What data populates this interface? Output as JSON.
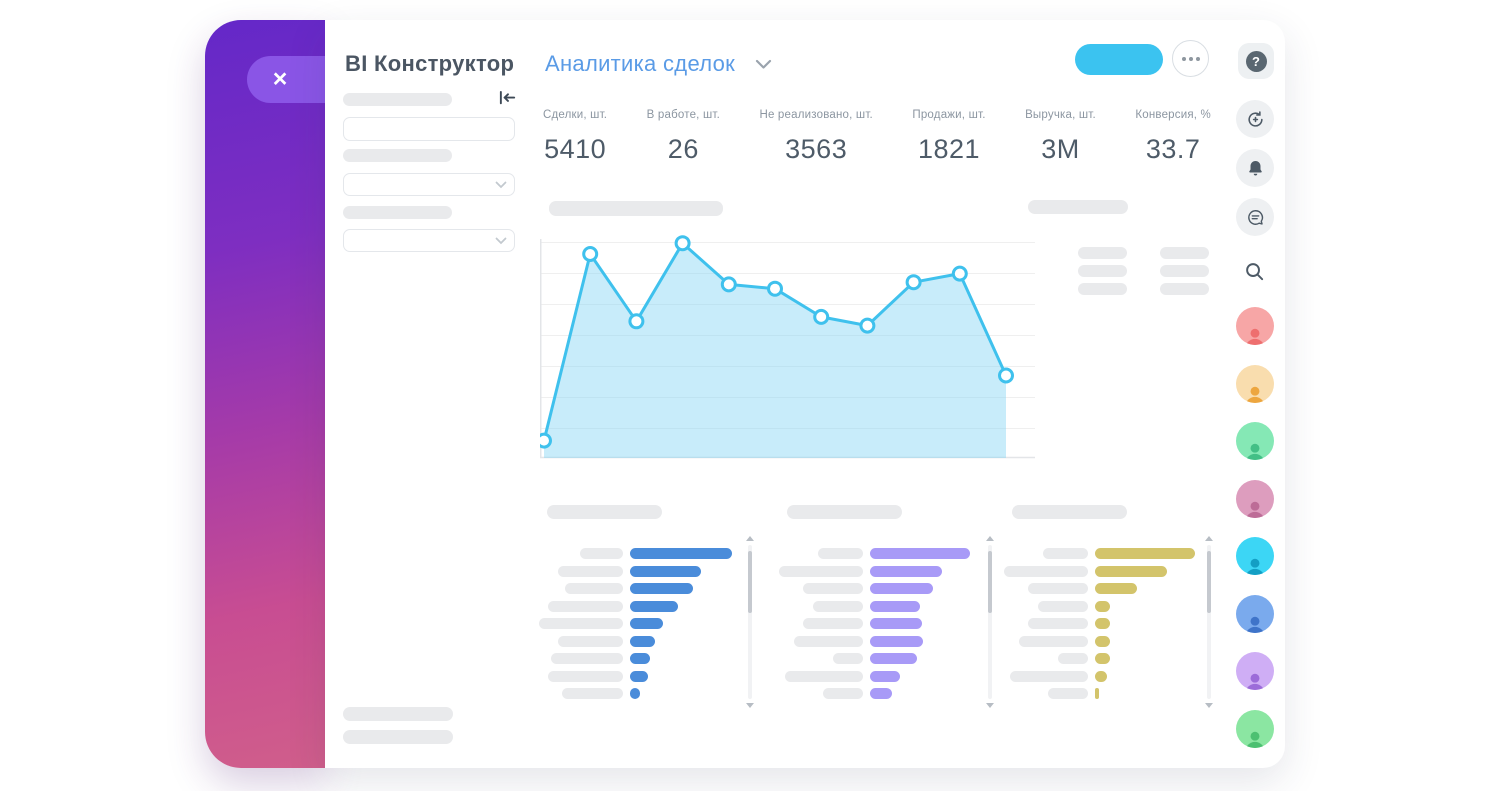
{
  "header": {
    "app_title": "BI Конструктор",
    "dashboard_title": "Аналитика сделок",
    "close_label": "×",
    "help_label": "?"
  },
  "kpis": [
    {
      "label": "Сделки, шт.",
      "value": "5410"
    },
    {
      "label": "В работе, шт.",
      "value": "26"
    },
    {
      "label": "Не реализовано, шт.",
      "value": "3563"
    },
    {
      "label": "Продажи, шт.",
      "value": "1821"
    },
    {
      "label": "Выручка, шт.",
      "value": "3M"
    },
    {
      "label": "Конверсия, %",
      "value": "33.7"
    }
  ],
  "chart_data": [
    {
      "type": "area",
      "title": "",
      "x": [
        1,
        2,
        3,
        4,
        5,
        6,
        7,
        8,
        9,
        10,
        11
      ],
      "values": [
        8,
        94,
        63,
        99,
        80,
        78,
        65,
        61,
        81,
        85,
        38
      ],
      "ylim": [
        0,
        100
      ],
      "grid": true,
      "legend_position": "right-skeleton",
      "line_color": "#3fc1ed",
      "fill_color": "rgba(134,212,245,0.45)",
      "marker": "white-circle"
    },
    {
      "type": "bar",
      "name": "funnel-blue",
      "orientation": "horizontal",
      "color": "#4a8cda",
      "values": [
        102,
        71,
        63,
        48,
        33,
        25,
        20,
        18,
        10
      ],
      "label_widths": [
        43,
        65,
        58,
        75,
        84,
        65,
        72,
        75,
        61
      ],
      "units": "relative-px"
    },
    {
      "type": "bar",
      "name": "funnel-purple",
      "orientation": "horizontal",
      "color": "#a89af7",
      "values": [
        100,
        72,
        63,
        50,
        52,
        53,
        47,
        30,
        22
      ],
      "label_widths": [
        45,
        84,
        60,
        50,
        60,
        69,
        30,
        78,
        40
      ],
      "units": "relative-px"
    },
    {
      "type": "bar",
      "name": "funnel-yellow",
      "orientation": "horizontal",
      "color": "#d3c46b",
      "values": [
        100,
        72,
        42,
        15,
        15,
        15,
        15,
        12,
        4
      ],
      "label_widths": [
        45,
        84,
        60,
        50,
        60,
        69,
        30,
        78,
        40
      ],
      "units": "relative-px"
    }
  ],
  "avatars": [
    {
      "bg": "#f7a6a6",
      "fg": "#ee6f6f"
    },
    {
      "bg": "#f9ddae",
      "fg": "#eda63f"
    },
    {
      "bg": "#85e8b5",
      "fg": "#43bf86"
    },
    {
      "bg": "#dd9dbe",
      "fg": "#bd6c97"
    },
    {
      "bg": "#3cd6f5",
      "fg": "#149fc4"
    },
    {
      "bg": "#7aaaed",
      "fg": "#3f74c9"
    },
    {
      "bg": "#cfaef5",
      "fg": "#9c6cd9"
    },
    {
      "bg": "#8be6a2",
      "fg": "#4cc071"
    }
  ],
  "colors": {
    "accent_blue": "#3bc3f0",
    "link_blue": "#5a9be6",
    "close_pill": "#8a55e6",
    "panel_gradient_top": "#6428c8",
    "panel_gradient_bottom": "#d05e8b",
    "skeleton": "#e9eaec"
  }
}
